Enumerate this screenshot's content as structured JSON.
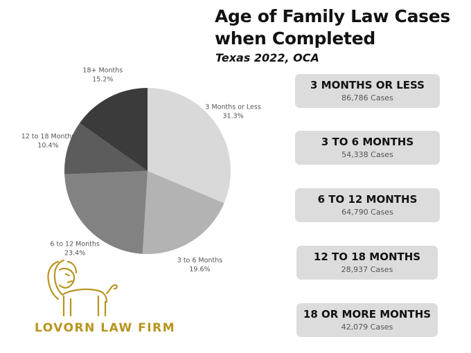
{
  "header": {
    "title": "Age of Family Law Cases when Completed",
    "subtitle": "Texas 2022, OCA"
  },
  "chart_data": {
    "type": "pie",
    "categories": [
      "3 Months or Less",
      "3 to 6 Months",
      "6 to 12 Months",
      "12 to 18 Months",
      "18+ Months"
    ],
    "values": [
      31.3,
      19.6,
      23.4,
      10.4,
      15.2
    ],
    "value_labels": [
      "31.3%",
      "19.6%",
      "23.4%",
      "10.4%",
      "15.2%"
    ],
    "colors": [
      "#d9d9d9",
      "#b3b3b3",
      "#828282",
      "#5c5c5c",
      "#3b3b3b"
    ],
    "title": ""
  },
  "cards": [
    {
      "title": "3 MONTHS OR LESS",
      "value": "86,786 Cases"
    },
    {
      "title": "3 TO 6 MONTHS",
      "value": "54,338 Cases"
    },
    {
      "title": "6 TO 12 MONTHS",
      "value": "64,790 Cases"
    },
    {
      "title": "12 TO 18 MONTHS",
      "value": "28,937 Cases"
    },
    {
      "title": "18 OR MORE MONTHS",
      "value": "42,079 Cases"
    }
  ],
  "brand": {
    "name": "LOVORN LAW FIRM",
    "logo_icon": "lion-icon",
    "color": "#b8941f"
  },
  "colors": {
    "card_bg": "#dcdcdc",
    "title_text": "#111111"
  }
}
